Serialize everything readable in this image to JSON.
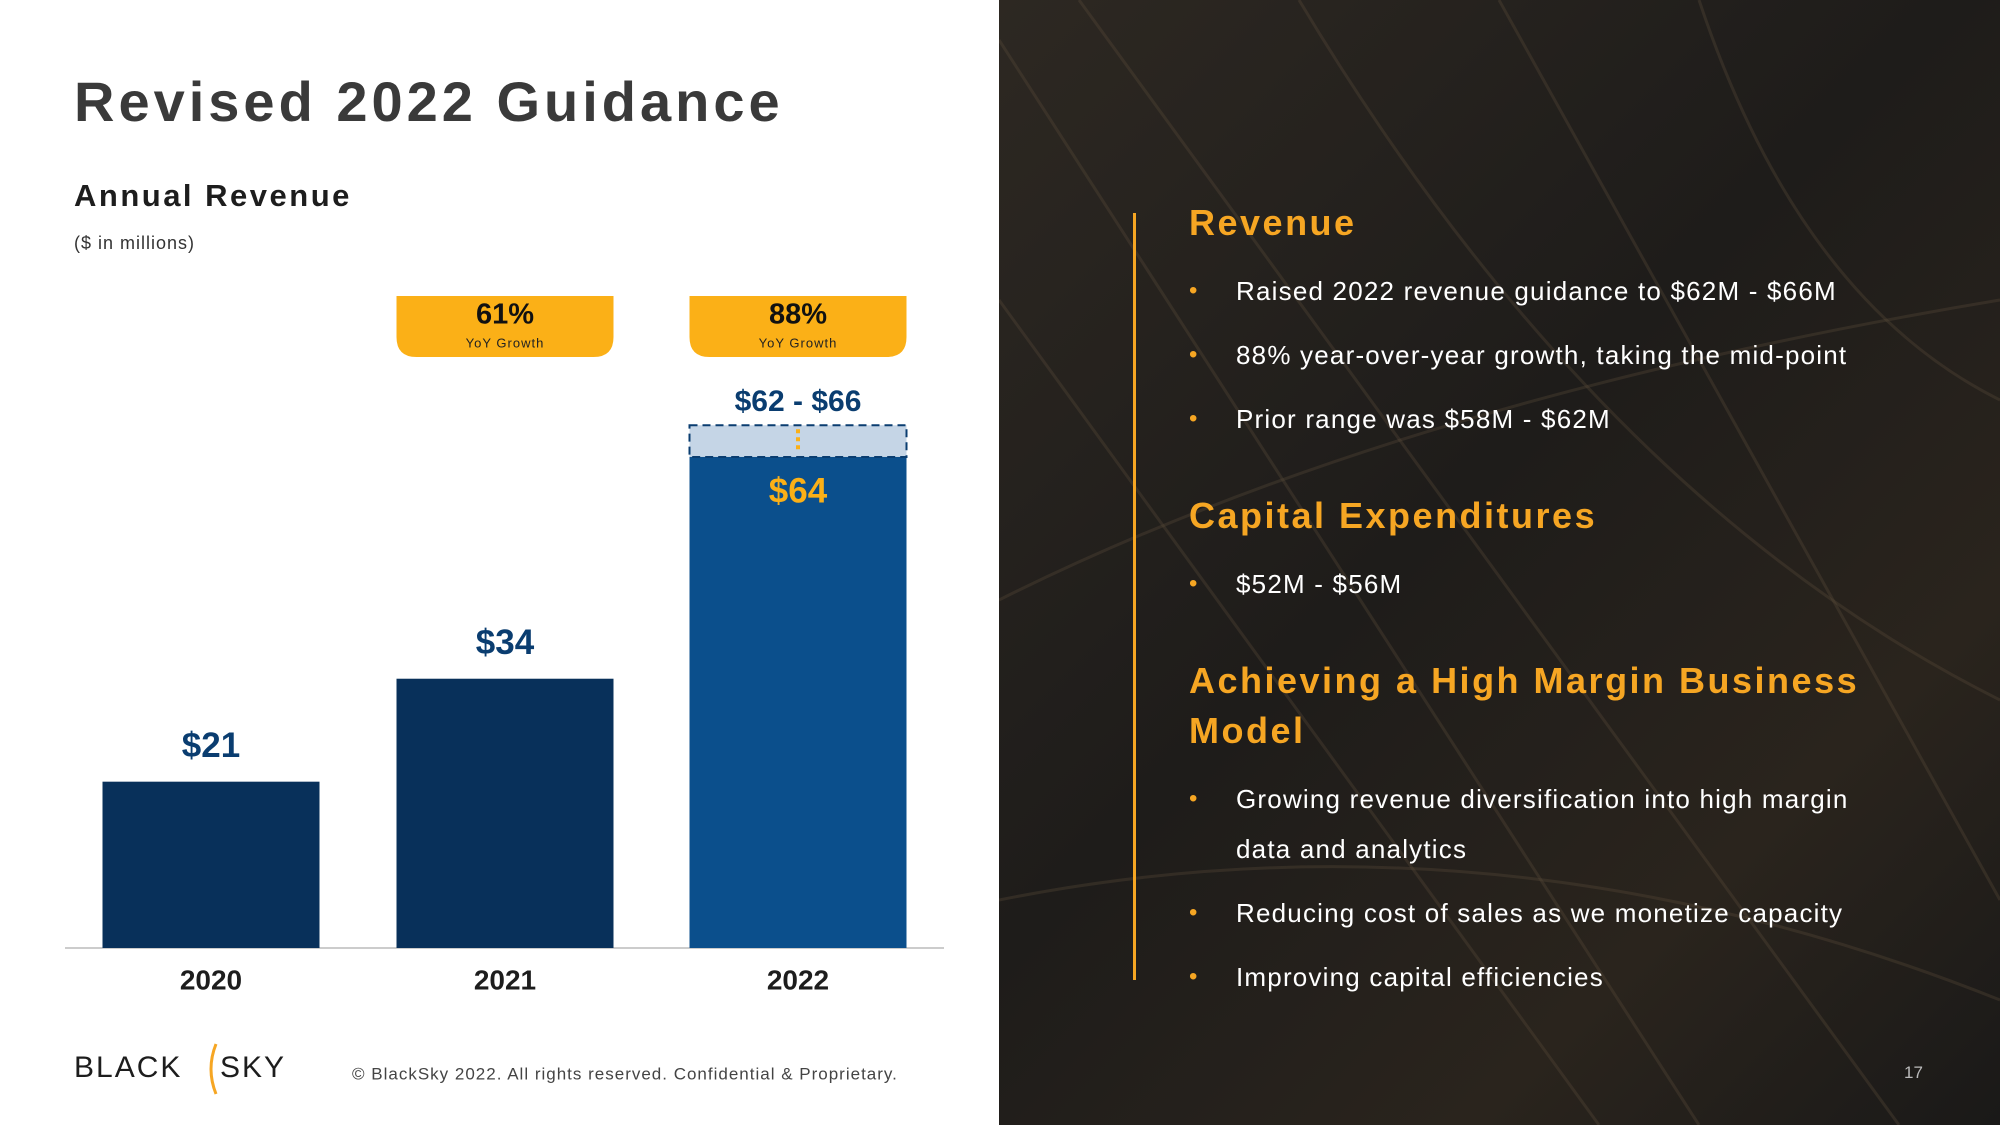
{
  "title": "Revised 2022 Guidance",
  "chart_data": {
    "type": "bar",
    "title": "Annual Revenue",
    "subtitle": "($ in millions)",
    "categories": [
      "2020",
      "2021",
      "2022"
    ],
    "values": [
      21,
      34,
      64
    ],
    "value_labels": [
      "$21",
      "$34",
      "$64"
    ],
    "colors": [
      "#08305a",
      "#08305a",
      "#0b4f8c"
    ],
    "label_color": "#0a3d70",
    "highlight_label_color": "#fbb017",
    "guidance_range": {
      "low": 62,
      "high": 66,
      "label": "$62 - $66",
      "color": "#c5d5e6"
    },
    "growth": {
      "values": [
        null,
        61,
        88
      ],
      "value_labels": [
        null,
        "61%",
        "88%"
      ],
      "caption": "YoY Growth",
      "color": "#fbb017"
    }
  },
  "panel": {
    "sections": [
      {
        "heading": "Revenue",
        "bullets": [
          "Raised 2022 revenue guidance to $62M - $66M",
          "88% year-over-year growth, taking the mid-point",
          "Prior range was $58M - $62M"
        ]
      },
      {
        "heading": "Capital Expenditures",
        "bullets": [
          "$52M - $56M"
        ]
      },
      {
        "heading": "Achieving a High Margin Business Model",
        "bullets": [
          "Growing revenue diversification into high margin data and analytics",
          "Reducing cost of sales as we monetize capacity",
          "Improving capital efficiencies"
        ]
      }
    ]
  },
  "footer": {
    "logo_left": "BLACK",
    "logo_right": "SKY",
    "copyright": "© BlackSky 2022. All rights reserved. Confidential & Proprietary.",
    "page": "17"
  }
}
